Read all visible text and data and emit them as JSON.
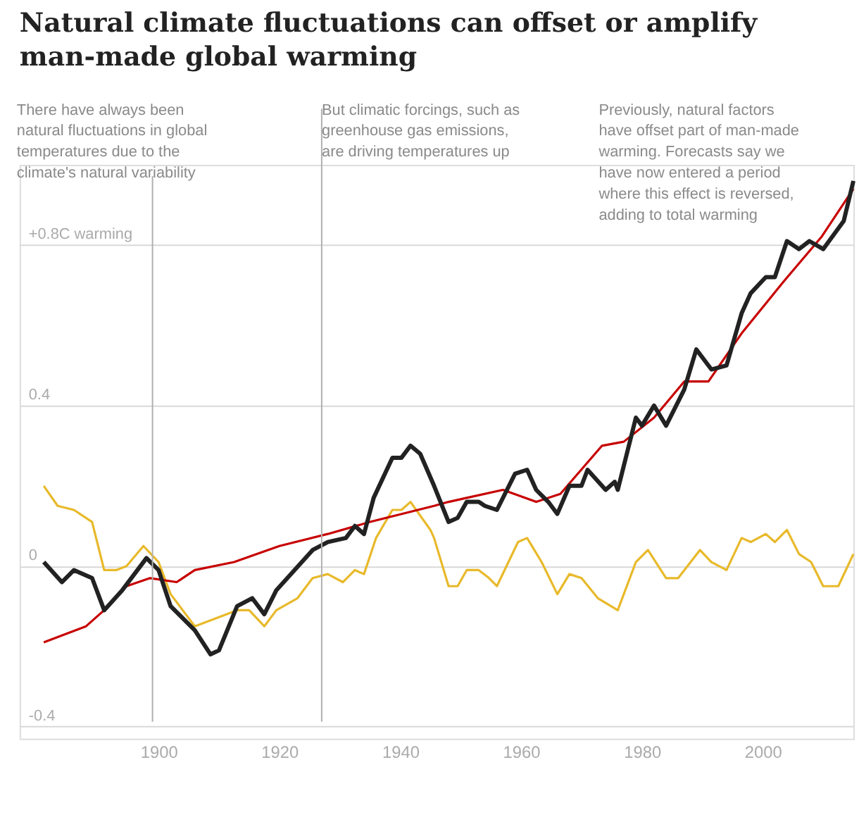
{
  "chart_data": {
    "type": "line",
    "title": "Natural climate fluctuations can offset or amplify man-made global warming",
    "annotations": [
      "There have always been\nnatural fluctuations in global\ntemperatures due to the\nclimate's natural variability",
      "But climatic forcings, such as\ngreenhouse gas emissions,\nare driving temperatures up",
      "Previously, natural factors\nhave offset part of man-made\nwarming. Forecasts say we\nhave now entered a period\nwhere this effect is reversed,\nadding to total warming"
    ],
    "ref_lines": [
      {
        "axis": "x",
        "value": 1899
      },
      {
        "axis": "x",
        "value": 1927
      }
    ],
    "xlim": [
      1877,
      2015
    ],
    "xticks": [
      1900,
      1920,
      1940,
      1960,
      1980,
      2000
    ],
    "ylim": [
      -0.43,
      1.0
    ],
    "yticks": [
      {
        "value": 0.8,
        "label": "+0.8C warming"
      },
      0.4,
      0,
      -0.4
    ],
    "grid": "y",
    "line_style": "solid",
    "marker": "none",
    "series": [
      {
        "color": "#e8b92a",
        "x": [
          1881,
          1883.3,
          1886,
          1889,
          1891,
          1893,
          1894.7,
          1897.5,
          1900,
          1902,
          1906,
          1913,
          1915,
          1917.5,
          1919.5,
          1923,
          1925.5,
          1928,
          1930.5,
          1932.5,
          1934,
          1936,
          1938.7,
          1940.2,
          1941.7,
          1945,
          1945.6,
          1948,
          1949.5,
          1951,
          1953,
          1954.7,
          1956,
          1959.5,
          1961,
          1963.4,
          1966,
          1968,
          1970,
          1972.7,
          1976,
          1979,
          1981,
          1984,
          1986,
          1989.6,
          1991.5,
          1994,
          1996.5,
          1998,
          2000.5,
          2002,
          2004,
          2006,
          2008,
          2010,
          2012.5,
          2015
        ],
        "values": [
          0.2,
          0.15,
          0.14,
          0.11,
          -0.01,
          -0.01,
          0.0,
          0.05,
          0.01,
          -0.07,
          -0.15,
          -0.11,
          -0.11,
          -0.15,
          -0.11,
          -0.08,
          -0.03,
          -0.02,
          -0.04,
          -0.01,
          -0.02,
          0.07,
          0.14,
          0.14,
          0.16,
          0.09,
          0.07,
          -0.05,
          -0.05,
          -0.01,
          -0.01,
          -0.03,
          -0.05,
          0.06,
          0.07,
          0.01,
          -0.07,
          -0.02,
          -0.03,
          -0.08,
          -0.11,
          0.01,
          0.04,
          -0.03,
          -0.03,
          0.04,
          0.01,
          -0.01,
          0.07,
          0.06,
          0.08,
          0.06,
          0.09,
          0.03,
          0.01,
          -0.05,
          -0.05,
          0.03
        ]
      },
      {
        "color": "#c70000",
        "x": [
          1881,
          1888,
          1891,
          1894.7,
          1898.6,
          1903,
          1906,
          1912.5,
          1920,
          1928,
          1935,
          1945.6,
          1948,
          1951,
          1957,
          1962.5,
          1966.5,
          1973.4,
          1977,
          1982,
          1987,
          1991,
          1996.5,
          2003.5,
          2009.7,
          2015
        ],
        "values": [
          -0.19,
          -0.15,
          -0.11,
          -0.05,
          -0.03,
          -0.04,
          -0.01,
          0.01,
          0.05,
          0.08,
          0.11,
          0.15,
          0.16,
          0.17,
          0.19,
          0.16,
          0.18,
          0.3,
          0.31,
          0.37,
          0.46,
          0.46,
          0.58,
          0.71,
          0.82,
          0.94
        ]
      },
      {
        "color": "#222222",
        "x": [
          1881,
          1884,
          1886,
          1889,
          1891,
          1894,
          1898,
          1900,
          1902,
          1906,
          1908.6,
          1910,
          1913,
          1915.5,
          1917.5,
          1919.5,
          1922.5,
          1925.5,
          1928,
          1931,
          1932.5,
          1934,
          1935.6,
          1938.7,
          1940.2,
          1941.7,
          1943.3,
          1945.6,
          1948,
          1949.5,
          1951,
          1953,
          1954,
          1956,
          1959,
          1961,
          1962.5,
          1964.5,
          1966,
          1968,
          1970,
          1971,
          1974,
          1975.5,
          1976,
          1979,
          1980,
          1982,
          1984,
          1987,
          1989,
          1991.5,
          1994,
          1996.5,
          1998,
          2000.5,
          2002,
          2004,
          2006,
          2007.7,
          2010,
          2013.4,
          2015
        ],
        "values": [
          0.01,
          -0.04,
          -0.01,
          -0.03,
          -0.11,
          -0.06,
          0.02,
          -0.01,
          -0.1,
          -0.16,
          -0.22,
          -0.21,
          -0.1,
          -0.08,
          -0.12,
          -0.06,
          -0.01,
          0.04,
          0.06,
          0.07,
          0.1,
          0.08,
          0.17,
          0.27,
          0.27,
          0.3,
          0.28,
          0.2,
          0.11,
          0.12,
          0.16,
          0.16,
          0.15,
          0.14,
          0.23,
          0.24,
          0.19,
          0.16,
          0.13,
          0.2,
          0.2,
          0.24,
          0.19,
          0.21,
          0.19,
          0.37,
          0.35,
          0.4,
          0.35,
          0.44,
          0.54,
          0.49,
          0.5,
          0.63,
          0.68,
          0.72,
          0.72,
          0.81,
          0.79,
          0.81,
          0.79,
          0.86,
          0.96
        ]
      }
    ]
  }
}
